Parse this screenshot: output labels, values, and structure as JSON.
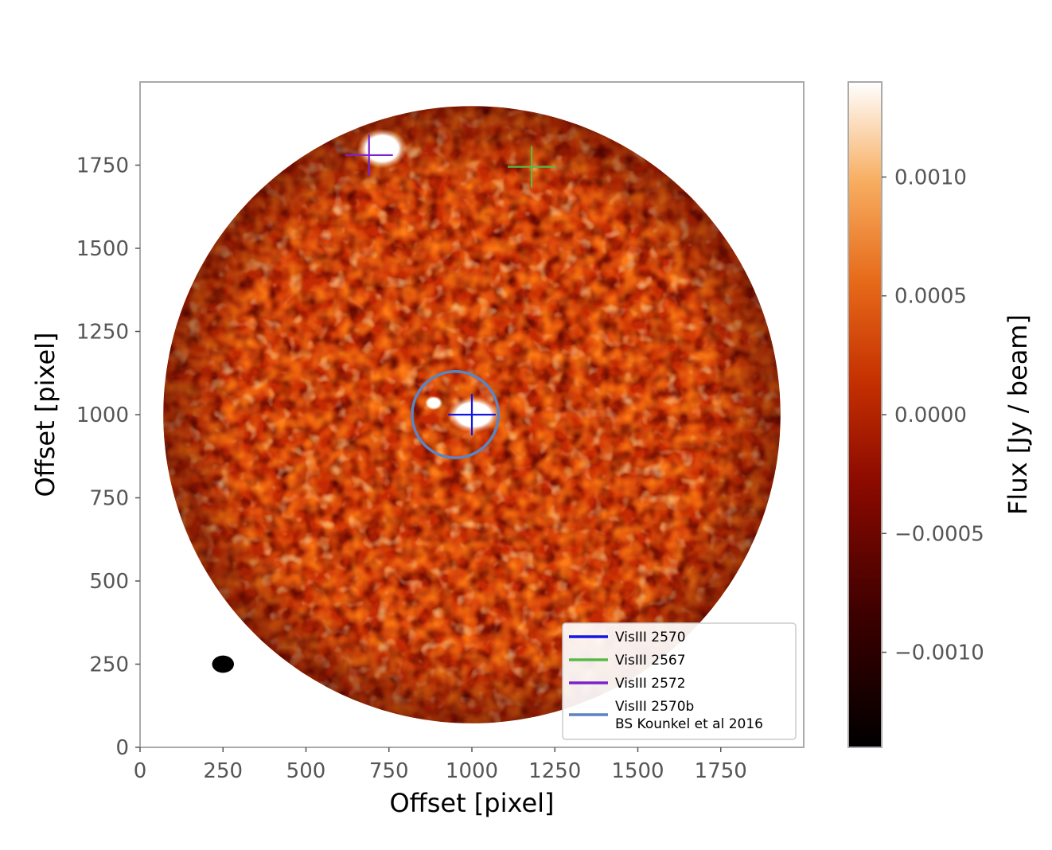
{
  "chart_data": {
    "type": "heatmap",
    "title": "",
    "xlabel": "Offset [pixel]",
    "ylabel": "Offset [pixel]",
    "xlim": [
      0,
      2000
    ],
    "ylim": [
      0,
      2000
    ],
    "xticks": [
      0,
      250,
      500,
      750,
      1000,
      1250,
      1500,
      1750
    ],
    "yticks": [
      0,
      250,
      500,
      750,
      1000,
      1250,
      1500,
      1750
    ],
    "xtick_labels": [
      "0",
      "250",
      "500",
      "750",
      "1000",
      "1250",
      "1500",
      "1750"
    ],
    "ytick_labels": [
      "0",
      "250",
      "500",
      "750",
      "1000",
      "1250",
      "1500",
      "1750"
    ],
    "grid": false,
    "field": {
      "center": [
        1000,
        1000
      ],
      "radius": 930
    },
    "colorbar": {
      "label": "Flux [Jy / beam]",
      "range": [
        -0.0014,
        0.0014
      ],
      "ticks": [
        0.001,
        0.0005,
        0.0,
        -0.0005,
        -0.001
      ],
      "tick_labels": [
        "0.0010",
        "0.0005",
        "0.0000",
        "−0.0005",
        "−0.0010"
      ],
      "colormap": "gist_heat"
    },
    "markers": [
      {
        "name": "VisIII 2570",
        "x": 1000,
        "y": 1000,
        "color": "#1515e0",
        "kind": "cross"
      },
      {
        "name": "VisIII 2567",
        "x": 1180,
        "y": 1745,
        "color": "#5ab846",
        "kind": "cross"
      },
      {
        "name": "VisIII 2572",
        "x": 690,
        "y": 1780,
        "color": "#7a22cc",
        "kind": "cross"
      },
      {
        "name": "VisIII 2570b\nBS Kounkel et al 2016",
        "x": 950,
        "y": 1000,
        "radius": 130,
        "color": "#5b84c0",
        "kind": "circle"
      }
    ],
    "bright_sources": [
      {
        "x": 730,
        "y": 1800,
        "rx": 75,
        "ry": 60
      },
      {
        "x": 1005,
        "y": 1000,
        "rx": 80,
        "ry": 55
      },
      {
        "x": 885,
        "y": 1035,
        "rx": 28,
        "ry": 22
      }
    ],
    "beam": {
      "x": 250,
      "y": 250,
      "rx": 33,
      "ry": 26
    },
    "legend": {
      "position": "lower-right",
      "entries": [
        {
          "label_lines": [
            "VisIII 2570"
          ],
          "color": "#1515e0"
        },
        {
          "label_lines": [
            "VisIII 2567"
          ],
          "color": "#5ab846"
        },
        {
          "label_lines": [
            "VisIII 2572"
          ],
          "color": "#7a22cc"
        },
        {
          "label_lines": [
            "VisIII 2570b",
            "BS Kounkel et al 2016"
          ],
          "color": "#5b84c0"
        }
      ]
    }
  }
}
